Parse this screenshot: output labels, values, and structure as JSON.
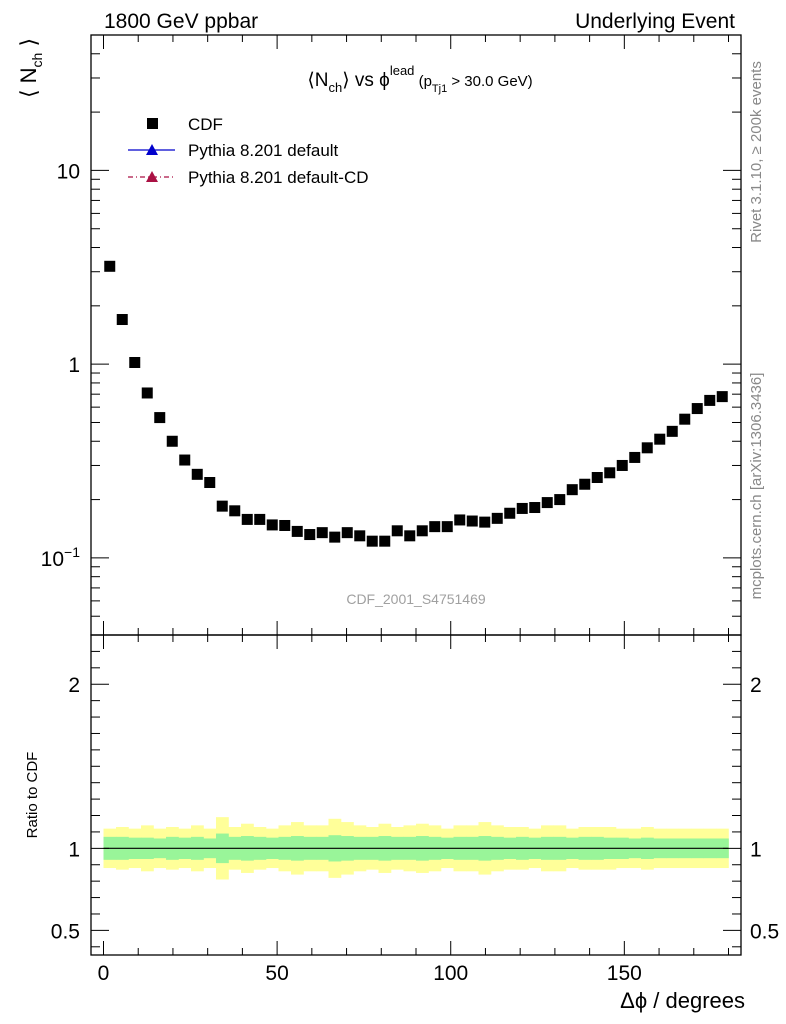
{
  "header": {
    "left": "1800 GeV ppbar",
    "right": "Underlying Event"
  },
  "side_labels": {
    "rivet": "Rivet 3.1.10, ≥ 200k events",
    "mcplots": "mcplots.cern.ch [arXiv:1306.3436]"
  },
  "chart_data": {
    "type": "scatter",
    "title_parts": {
      "lhs": "⟨N",
      "lhs_sub": "ch",
      "mid": "⟩ vs ϕ",
      "sup": "lead",
      "paren_open": " (p",
      "paren_sub": "Tj1",
      "paren_close": " > 30.0 GeV)"
    },
    "ylabel_main": {
      "base": "⟨ N",
      "sub": "ch",
      "close": " ⟩"
    },
    "ylabel_ratio": "Ratio to CDF",
    "xlabel": "Δϕ / degrees",
    "watermark": "CDF_2001_S4751469",
    "xlim": [
      -3.6,
      183.6
    ],
    "ylim_main": [
      0.04,
      50
    ],
    "ylim_ratio": [
      0.35,
      2.3
    ],
    "yscale_main": "log",
    "x_ticks": [
      "0",
      "50",
      "100",
      "150"
    ],
    "x_tick_values": [
      0,
      50,
      100,
      150
    ],
    "y_ticks_main": [
      {
        "value": 10,
        "label": "10",
        "sup": ""
      },
      {
        "value": 1,
        "label": "1",
        "sup": ""
      },
      {
        "value": 0.1,
        "label": "10",
        "sup": "−1"
      }
    ],
    "y_ticks_ratio": [
      {
        "value": 2,
        "label": "2"
      },
      {
        "value": 1,
        "label": "1"
      },
      {
        "value": 0.5,
        "label": "0.5"
      }
    ],
    "legend": {
      "position": "top-left",
      "entries": [
        {
          "label": "CDF",
          "marker": "square",
          "color": "#000000"
        },
        {
          "label": "Pythia 8.201 default",
          "marker": "triangle",
          "color": "#0000cc",
          "line": "solid"
        },
        {
          "label": "Pythia 8.201 default-CD",
          "marker": "triangle",
          "color": "#aa1144",
          "line": "dashdot"
        }
      ]
    },
    "series": [
      {
        "name": "CDF",
        "x": [
          1.8,
          5.4,
          9,
          12.6,
          16.2,
          19.8,
          23.4,
          27,
          30.6,
          34.2,
          37.8,
          41.4,
          45,
          48.6,
          52.2,
          55.8,
          59.4,
          63,
          66.6,
          70.2,
          73.8,
          77.4,
          81,
          84.6,
          88.2,
          91.8,
          95.4,
          99,
          102.6,
          106.2,
          109.8,
          113.4,
          117,
          120.6,
          124.2,
          127.8,
          131.4,
          135,
          138.6,
          142.2,
          145.8,
          149.4,
          153,
          156.6,
          160.2,
          163.8,
          167.4,
          171,
          174.6,
          178.2
        ],
        "y": [
          3.2,
          1.7,
          1.02,
          0.71,
          0.53,
          0.4,
          0.32,
          0.27,
          0.245,
          0.185,
          0.175,
          0.158,
          0.158,
          0.148,
          0.147,
          0.137,
          0.132,
          0.135,
          0.128,
          0.135,
          0.13,
          0.122,
          0.122,
          0.138,
          0.13,
          0.138,
          0.145,
          0.145,
          0.157,
          0.155,
          0.153,
          0.16,
          0.17,
          0.18,
          0.182,
          0.193,
          0.2,
          0.225,
          0.24,
          0.26,
          0.275,
          0.3,
          0.33,
          0.37,
          0.41,
          0.45,
          0.52,
          0.59,
          0.65,
          0.68
        ]
      }
    ],
    "ratio_band": {
      "inner": [
        0.07,
        0.07,
        0.065,
        0.065,
        0.06,
        0.07,
        0.065,
        0.07,
        0.06,
        0.09,
        0.07,
        0.075,
        0.07,
        0.065,
        0.07,
        0.075,
        0.07,
        0.07,
        0.08,
        0.075,
        0.07,
        0.07,
        0.075,
        0.07,
        0.07,
        0.075,
        0.07,
        0.065,
        0.07,
        0.07,
        0.075,
        0.07,
        0.065,
        0.07,
        0.065,
        0.07,
        0.07,
        0.065,
        0.07,
        0.07,
        0.065,
        0.065,
        0.06,
        0.065,
        0.06,
        0.06,
        0.06,
        0.06,
        0.06,
        0.06
      ],
      "outer": [
        0.12,
        0.13,
        0.12,
        0.14,
        0.12,
        0.13,
        0.12,
        0.14,
        0.12,
        0.19,
        0.13,
        0.15,
        0.13,
        0.12,
        0.14,
        0.16,
        0.14,
        0.14,
        0.18,
        0.16,
        0.14,
        0.13,
        0.15,
        0.13,
        0.14,
        0.15,
        0.14,
        0.12,
        0.14,
        0.14,
        0.16,
        0.14,
        0.13,
        0.13,
        0.12,
        0.14,
        0.14,
        0.12,
        0.13,
        0.13,
        0.13,
        0.12,
        0.12,
        0.13,
        0.12,
        0.12,
        0.12,
        0.12,
        0.12,
        0.12
      ]
    },
    "colors": {
      "inner_band": "#99f599",
      "outer_band": "#ffff99",
      "marker": "#000000"
    }
  }
}
